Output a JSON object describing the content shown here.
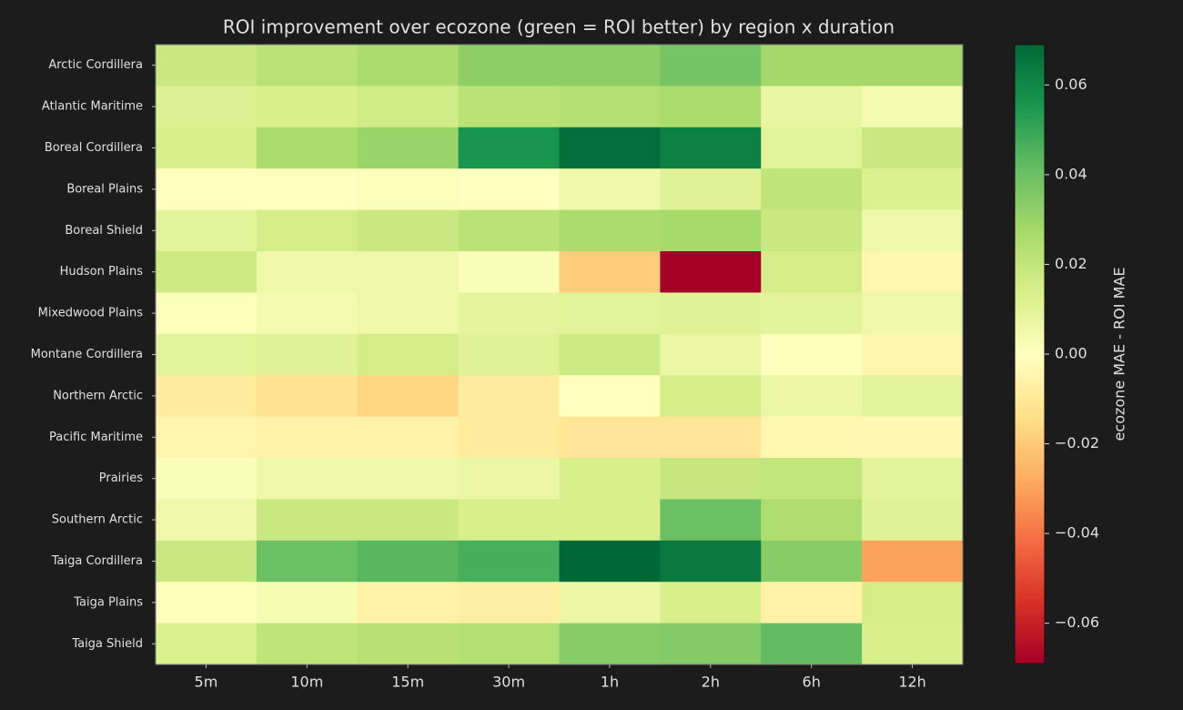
{
  "chart_data": {
    "type": "heatmap",
    "title": "ROI improvement over ecozone (green = ROI better) by region x duration",
    "columns": [
      "5m",
      "10m",
      "15m",
      "30m",
      "1h",
      "2h",
      "6h",
      "12h"
    ],
    "rows": [
      "Arctic Cordillera",
      "Atlantic Maritime",
      "Boreal Cordillera",
      "Boreal Plains",
      "Boreal Shield",
      "Hudson Plains",
      "Mixedwood Plains",
      "Montane Cordillera",
      "Northern Arctic",
      "Pacific Maritime",
      "Prairies",
      "Southern Arctic",
      "Taiga Cordillera",
      "Taiga Plains",
      "Taiga Shield"
    ],
    "values": [
      [
        0.018,
        0.022,
        0.026,
        0.033,
        0.033,
        0.038,
        0.028,
        0.028
      ],
      [
        0.012,
        0.014,
        0.016,
        0.022,
        0.024,
        0.026,
        0.008,
        0.004
      ],
      [
        0.014,
        0.026,
        0.03,
        0.056,
        0.067,
        0.062,
        0.01,
        0.018
      ],
      [
        0.0,
        0.0,
        0.001,
        0.0,
        0.006,
        0.011,
        0.021,
        0.013
      ],
      [
        0.01,
        0.015,
        0.018,
        0.022,
        0.026,
        0.027,
        0.018,
        0.006
      ],
      [
        0.017,
        0.006,
        0.006,
        0.002,
        -0.019,
        -0.069,
        0.015,
        -0.004
      ],
      [
        0.001,
        0.004,
        0.006,
        0.009,
        0.01,
        0.011,
        0.01,
        0.006
      ],
      [
        0.01,
        0.011,
        0.015,
        0.011,
        0.017,
        0.007,
        0.001,
        -0.005
      ],
      [
        -0.009,
        -0.012,
        -0.017,
        -0.009,
        0.0,
        0.015,
        0.007,
        0.01
      ],
      [
        -0.005,
        -0.006,
        -0.006,
        -0.009,
        -0.011,
        -0.011,
        -0.004,
        -0.003
      ],
      [
        0.002,
        0.006,
        0.006,
        0.007,
        0.014,
        0.019,
        0.02,
        0.01
      ],
      [
        0.006,
        0.018,
        0.018,
        0.014,
        0.014,
        0.04,
        0.025,
        0.011
      ],
      [
        0.018,
        0.04,
        0.044,
        0.047,
        0.069,
        0.064,
        0.034,
        -0.03
      ],
      [
        0.001,
        0.003,
        -0.006,
        -0.007,
        0.007,
        0.014,
        -0.006,
        0.015
      ],
      [
        0.013,
        0.021,
        0.023,
        0.024,
        0.034,
        0.035,
        0.042,
        0.014
      ]
    ],
    "colormap": "RdYlGn",
    "clim": [
      -0.069,
      0.069
    ],
    "colorbar_label": "ecozone MAE - ROI MAE",
    "cticks": [
      {
        "value": -0.06,
        "label": "−0.06"
      },
      {
        "value": -0.04,
        "label": "−0.04"
      },
      {
        "value": -0.02,
        "label": "−0.02"
      },
      {
        "value": 0,
        "label": "0.00"
      },
      0.02,
      0.04,
      0.06
    ]
  }
}
